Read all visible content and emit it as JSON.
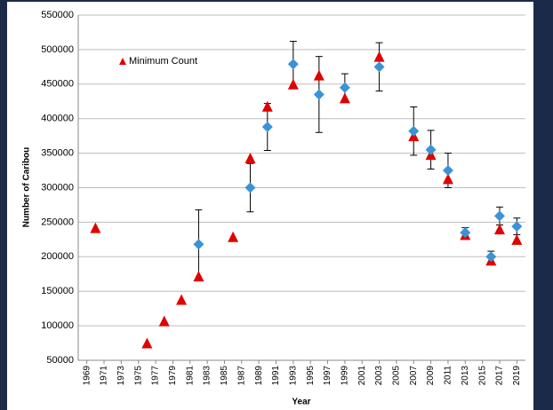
{
  "chart_data": {
    "type": "scatter",
    "x_label": "Year",
    "y_label": "Number of Caribou",
    "xlim": [
      1968,
      2020
    ],
    "xticks": [
      1969,
      1971,
      1973,
      1975,
      1977,
      1979,
      1981,
      1983,
      1985,
      1987,
      1989,
      1991,
      1993,
      1995,
      1997,
      1999,
      2001,
      2003,
      2005,
      2007,
      2009,
      2011,
      2013,
      2015,
      2017,
      2019
    ],
    "ylim": [
      50000,
      550000
    ],
    "yticks": [
      50000,
      100000,
      150000,
      200000,
      250000,
      300000,
      350000,
      400000,
      450000,
      500000,
      550000
    ],
    "grid": true,
    "legend": "upper left",
    "series": [
      {
        "name": "Minimum Count",
        "color": "#e00000",
        "marker": "triangle",
        "x": [
          1970,
          1976,
          1978,
          1980,
          1982,
          1986,
          1988,
          1990,
          1993,
          1996,
          1999,
          2003,
          2007,
          2009,
          2011,
          2013,
          2016,
          2017,
          2019
        ],
        "values": [
          242000,
          75000,
          107000,
          138000,
          172000,
          229000,
          343000,
          418000,
          450000,
          463000,
          430000,
          490000,
          375000,
          348000,
          313000,
          232000,
          195000,
          240000,
          225000
        ]
      },
      {
        "color": "#3a93d6",
        "marker": "diamond",
        "x": [
          1982,
          1988,
          1990,
          1993,
          1996,
          1999,
          2003,
          2007,
          2009,
          2011,
          2013,
          2016,
          2017,
          2019
        ],
        "values": [
          218000,
          300000,
          388000,
          479000,
          435000,
          445000,
          475000,
          382000,
          355000,
          325000,
          235000,
          200000,
          259000,
          244000
        ],
        "errors": [
          50000,
          35000,
          34000,
          33000,
          55000,
          20000,
          35000,
          35000,
          28000,
          25000,
          7000,
          8000,
          13000,
          12000
        ]
      }
    ]
  }
}
